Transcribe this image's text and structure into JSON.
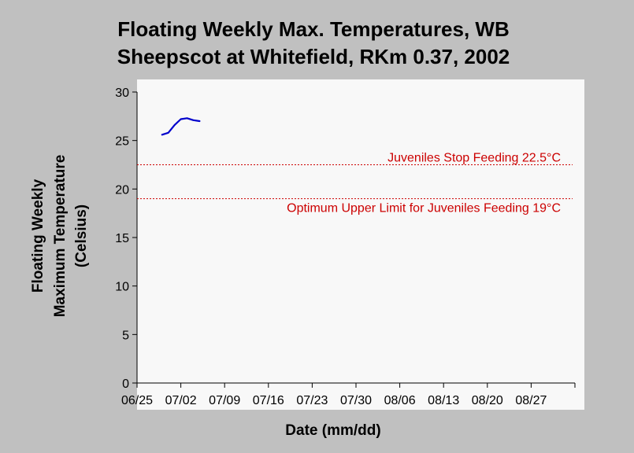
{
  "chart_data": {
    "type": "line",
    "title_lines": [
      "Floating Weekly Max. Temperatures, WB",
      "Sheepscot at Whitefield, RKm 0.37, 2002"
    ],
    "xlabel": "Date (mm/dd)",
    "ylabel_lines": [
      "Floating Weekly",
      "Maximum Temperature",
      "(Celsius)"
    ],
    "ylim": [
      0,
      30
    ],
    "yticks": [
      0,
      5,
      10,
      15,
      20,
      25,
      30
    ],
    "x_unit": "date",
    "x_range": [
      "06/25",
      "09/03"
    ],
    "xticks": [
      "06/25",
      "07/02",
      "07/09",
      "07/16",
      "07/23",
      "07/30",
      "08/06",
      "08/13",
      "08/20",
      "08/27"
    ],
    "grid": false,
    "series": [
      {
        "color": "#0000cc",
        "points": [
          {
            "x": "06/29",
            "y": 25.6
          },
          {
            "x": "06/30",
            "y": 25.8
          },
          {
            "x": "07/01",
            "y": 26.6
          },
          {
            "x": "07/02",
            "y": 27.2
          },
          {
            "x": "07/03",
            "y": 27.3
          },
          {
            "x": "07/04",
            "y": 27.1
          },
          {
            "x": "07/05",
            "y": 27.0
          }
        ]
      }
    ],
    "reference_lines": [
      {
        "y": 22.5,
        "label": "Juveniles Stop Feeding 22.5°C",
        "color": "#cc0000",
        "style": "dotted"
      },
      {
        "y": 19,
        "label": "Optimum Upper Limit for Juveniles Feeding 19°C",
        "color": "#cc0000",
        "style": "dotted"
      }
    ]
  },
  "colors": {
    "background": "#c0c0c0",
    "plot_background": "#f8f8f8"
  }
}
